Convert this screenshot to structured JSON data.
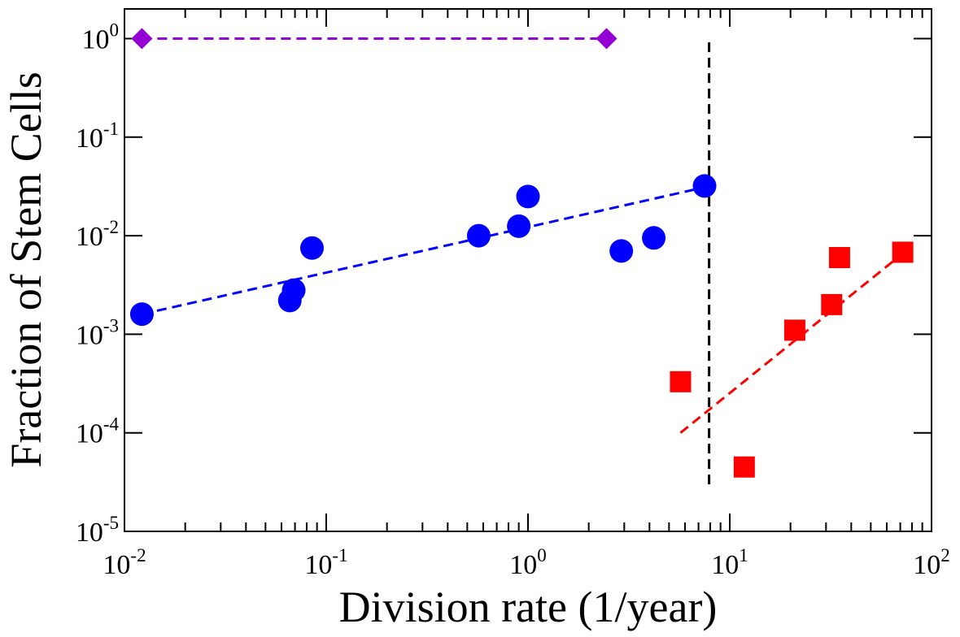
{
  "chart_data": {
    "type": "scatter",
    "title": "",
    "xlabel": "Division rate (1/year)",
    "ylabel": "Fraction of Stem Cells",
    "x_scale": "log",
    "y_scale": "log",
    "xlim": [
      0.01,
      100
    ],
    "ylim": [
      1e-05,
      2
    ],
    "grid": false,
    "x_ticks": [
      {
        "value": 0.01,
        "base": "10",
        "exp": "-2"
      },
      {
        "value": 0.1,
        "base": "10",
        "exp": "-1"
      },
      {
        "value": 1,
        "base": "10",
        "exp": "0"
      },
      {
        "value": 10,
        "base": "10",
        "exp": "1"
      },
      {
        "value": 100,
        "base": "10",
        "exp": "2"
      }
    ],
    "y_ticks": [
      {
        "value": 1e-05,
        "base": "10",
        "exp": "-5"
      },
      {
        "value": 0.0001,
        "base": "10",
        "exp": "-4"
      },
      {
        "value": 0.001,
        "base": "10",
        "exp": "-3"
      },
      {
        "value": 0.01,
        "base": "10",
        "exp": "-2"
      },
      {
        "value": 0.1,
        "base": "10",
        "exp": "-1"
      },
      {
        "value": 1,
        "base": "10",
        "exp": "0"
      }
    ],
    "series": [
      {
        "marker": "diamond",
        "color": "#9400d3",
        "points": [
          [
            0.0122,
            1.0
          ],
          [
            2.45,
            1.0
          ]
        ]
      },
      {
        "marker": "circle",
        "color": "#0000ff",
        "points": [
          [
            0.0122,
            0.0016
          ],
          [
            0.066,
            0.0022
          ],
          [
            0.069,
            0.0028
          ],
          [
            0.085,
            0.0075
          ],
          [
            0.57,
            0.01
          ],
          [
            0.9,
            0.0125
          ],
          [
            1.0,
            0.025
          ],
          [
            2.9,
            0.007
          ],
          [
            4.2,
            0.0095
          ],
          [
            7.5,
            0.032
          ]
        ]
      },
      {
        "marker": "square",
        "color": "#ff0000",
        "points": [
          [
            5.7,
            0.00033
          ],
          [
            11.8,
            4.5e-05
          ],
          [
            21.0,
            0.0011
          ],
          [
            32.0,
            0.002
          ],
          [
            35.0,
            0.006
          ],
          [
            72.0,
            0.0068
          ]
        ]
      }
    ],
    "reference_lines": [
      {
        "color": "#9400d3",
        "from": [
          0.0122,
          1.0
        ],
        "to": [
          2.45,
          1.0
        ]
      },
      {
        "color": "#0000ff",
        "from": [
          0.0122,
          0.0016
        ],
        "to": [
          7.5,
          0.031
        ]
      },
      {
        "color": "#ff0000",
        "from": [
          5.7,
          0.0001
        ],
        "to": [
          72.0,
          0.0066
        ]
      },
      {
        "color": "#000000",
        "from": [
          7.9,
          3e-05
        ],
        "to": [
          7.9,
          1.0
        ]
      }
    ]
  }
}
